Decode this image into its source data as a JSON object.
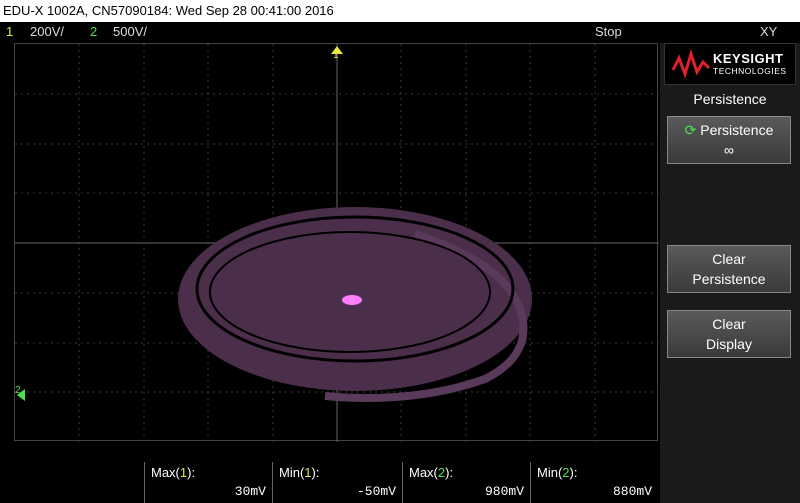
{
  "title_bar": {
    "text": "EDU-X 1002A, CN57090184: Wed Sep 28 00:41:00 2016"
  },
  "status": {
    "ch1_num": "1",
    "ch1_scale": "200V/",
    "ch2_num": "2",
    "ch2_scale": "500V/",
    "run_state": "Stop",
    "mode": "XY"
  },
  "markers": {
    "ch1": "1",
    "ch2": "2"
  },
  "brand": {
    "name": "KEYSIGHT",
    "sub": "TECHNOLOGIES"
  },
  "softkeys": {
    "menu_title": "Persistence",
    "persistence_label": "Persistence",
    "persistence_value": "∞",
    "clear_persistence_line1": "Clear",
    "clear_persistence_line2": "Persistence",
    "clear_display_line1": "Clear",
    "clear_display_line2": "Display"
  },
  "measurements": [
    {
      "label_pre": "Max(",
      "ch": "1",
      "label_post": "):",
      "value": "30mV"
    },
    {
      "label_pre": "Min(",
      "ch": "1",
      "label_post": "):",
      "value": "-50mV"
    },
    {
      "label_pre": "Max(",
      "ch": "2",
      "label_post": "):",
      "value": "980mV"
    },
    {
      "label_pre": "Min(",
      "ch": "2",
      "label_post": "):",
      "value": "880mV"
    }
  ],
  "colors": {
    "trace": "#5a3a5a",
    "trace_bright": "#ff80ff",
    "ch1": "#e8e83a",
    "ch2": "#4fe04f"
  }
}
